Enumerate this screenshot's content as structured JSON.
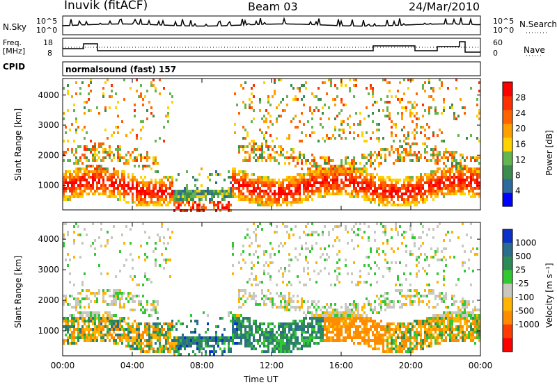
{
  "header": {
    "station": "Inuvik (fitACF)",
    "beam": "Beam 03",
    "date": "24/Mar/2010"
  },
  "noise_panel": {
    "left_label": "N.Sky",
    "left_ticks": [
      "10^5",
      "10^0"
    ],
    "right_ticks": [
      "10^5",
      "10^0"
    ],
    "right_label": "N.Search"
  },
  "freq_panel": {
    "left_label_line1": "Freq.",
    "left_label_line2": "[MHz]",
    "left_ticks": [
      "18",
      "8"
    ],
    "right_ticks": [
      "60",
      "0"
    ],
    "right_label": "Nave"
  },
  "cpid": {
    "label": "CPID",
    "value": "normalsound (fast) 157"
  },
  "colors": {
    "background": "#ffffff",
    "frame": "#000000",
    "velocity_scale": [
      "#ff0000",
      "#ff3c00",
      "#ff8c00",
      "#ffb400",
      "#c8c8c0",
      "#32c832",
      "#2e8b57",
      "#2a6e8c",
      "#0a32c8"
    ],
    "power_scale": [
      "#0000ff",
      "#2e6aa0",
      "#3c8c50",
      "#64b450",
      "#ffd200",
      "#ffa000",
      "#ff6400",
      "#ff3000",
      "#ff0000"
    ]
  },
  "chart_data": [
    {
      "type": "heatmap",
      "name": "power",
      "xlabel": "",
      "ylabel": "Slant Range [km]",
      "xlim": [
        "00:00",
        "24:00"
      ],
      "ylim": [
        180,
        4550
      ],
      "x_ticks": [
        "00:00",
        "04:00",
        "08:00",
        "12:00",
        "16:00",
        "20:00",
        "00:00"
      ],
      "y_ticks": [
        "1000",
        "2000",
        "3000",
        "4000"
      ],
      "y_tick_values": [
        1000,
        2000,
        3000,
        4000
      ],
      "colorbar": {
        "label": "Power [dB]",
        "ticks": [
          "4",
          "8",
          "12",
          "16",
          "20",
          "24",
          "28"
        ],
        "tick_values": [
          4,
          8,
          12,
          16,
          20,
          24,
          28
        ],
        "range": [
          0,
          32
        ]
      }
    },
    {
      "type": "heatmap",
      "name": "velocity",
      "xlabel": "Time UT",
      "ylabel": "Slant Range [km]",
      "xlim": [
        "00:00",
        "24:00"
      ],
      "ylim": [
        180,
        4550
      ],
      "x_ticks": [
        "00:00",
        "04:00",
        "08:00",
        "12:00",
        "16:00",
        "20:00",
        "00:00"
      ],
      "y_ticks": [
        "1000",
        "2000",
        "3000",
        "4000"
      ],
      "y_tick_values": [
        1000,
        2000,
        3000,
        4000
      ],
      "colorbar": {
        "label": "Velocity [m s⁻¹]",
        "ticks": [
          "1000",
          "500",
          "25",
          "-25",
          "-100",
          "-500",
          "-1000"
        ],
        "levels": 9
      }
    }
  ]
}
